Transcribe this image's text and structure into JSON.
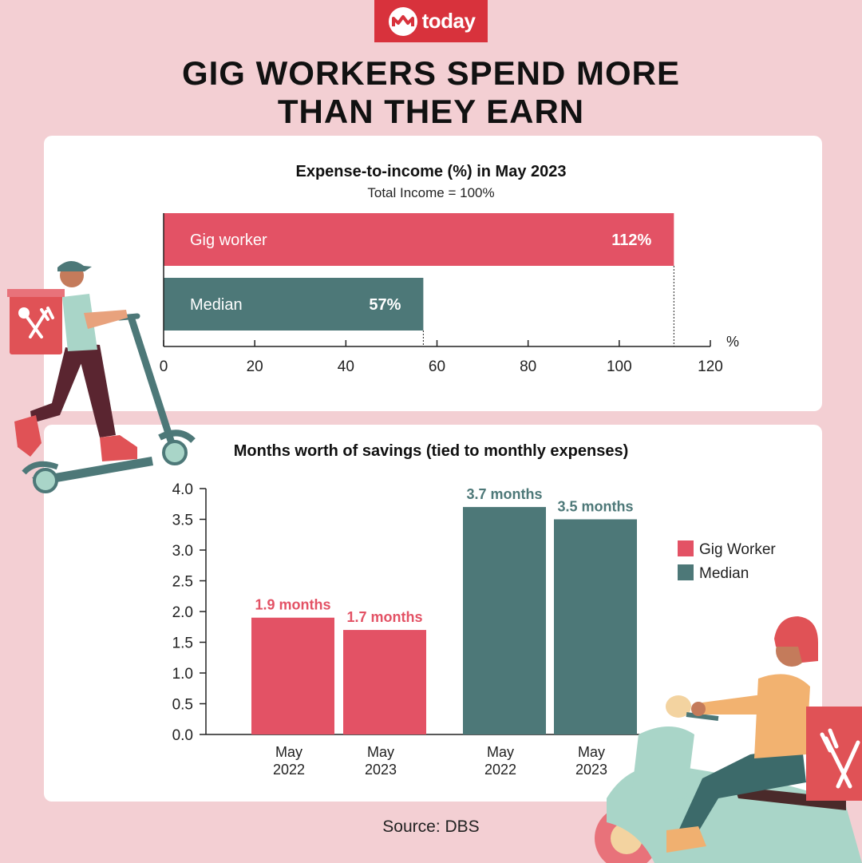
{
  "brand": {
    "logo_text": "today",
    "accent": "#d8323c"
  },
  "headline": {
    "line1": "GIG WORKERS SPEND MORE",
    "line2": "THAN THEY EARN"
  },
  "source": "Source: DBS",
  "colors": {
    "gig": "#e35265",
    "median": "#4d7878",
    "background": "#f3cfd3"
  },
  "chart_data": [
    {
      "type": "bar",
      "orientation": "horizontal",
      "title": "Expense-to-income (%) in May 2023",
      "subtitle": "Total Income = 100%",
      "xlabel": "%",
      "categories": [
        "Gig worker",
        "Median"
      ],
      "values": [
        112,
        57
      ],
      "value_labels": [
        "112%",
        "57%"
      ],
      "xlim": [
        0,
        120
      ],
      "xticks": [
        0,
        20,
        40,
        60,
        80,
        100,
        120
      ]
    },
    {
      "type": "bar",
      "title": "Months worth of savings (tied to monthly expenses)",
      "categories": [
        "May 2022",
        "May 2023"
      ],
      "series": [
        {
          "name": "Gig Worker",
          "values": [
            1.9,
            1.7
          ],
          "labels": [
            "1.9 months",
            "1.7 months"
          ]
        },
        {
          "name": "Median",
          "values": [
            3.7,
            3.5
          ],
          "labels": [
            "3.7 months",
            "3.5 months"
          ]
        }
      ],
      "ylim": [
        0,
        4.0
      ],
      "yticks": [
        "0.0",
        "0.5",
        "1.0",
        "1.5",
        "2.0",
        "2.5",
        "3.0",
        "3.5",
        "4.0"
      ],
      "xtick_lines": [
        [
          "May",
          "2022"
        ],
        [
          "May",
          "2023"
        ]
      ],
      "legend_position": "right"
    }
  ]
}
